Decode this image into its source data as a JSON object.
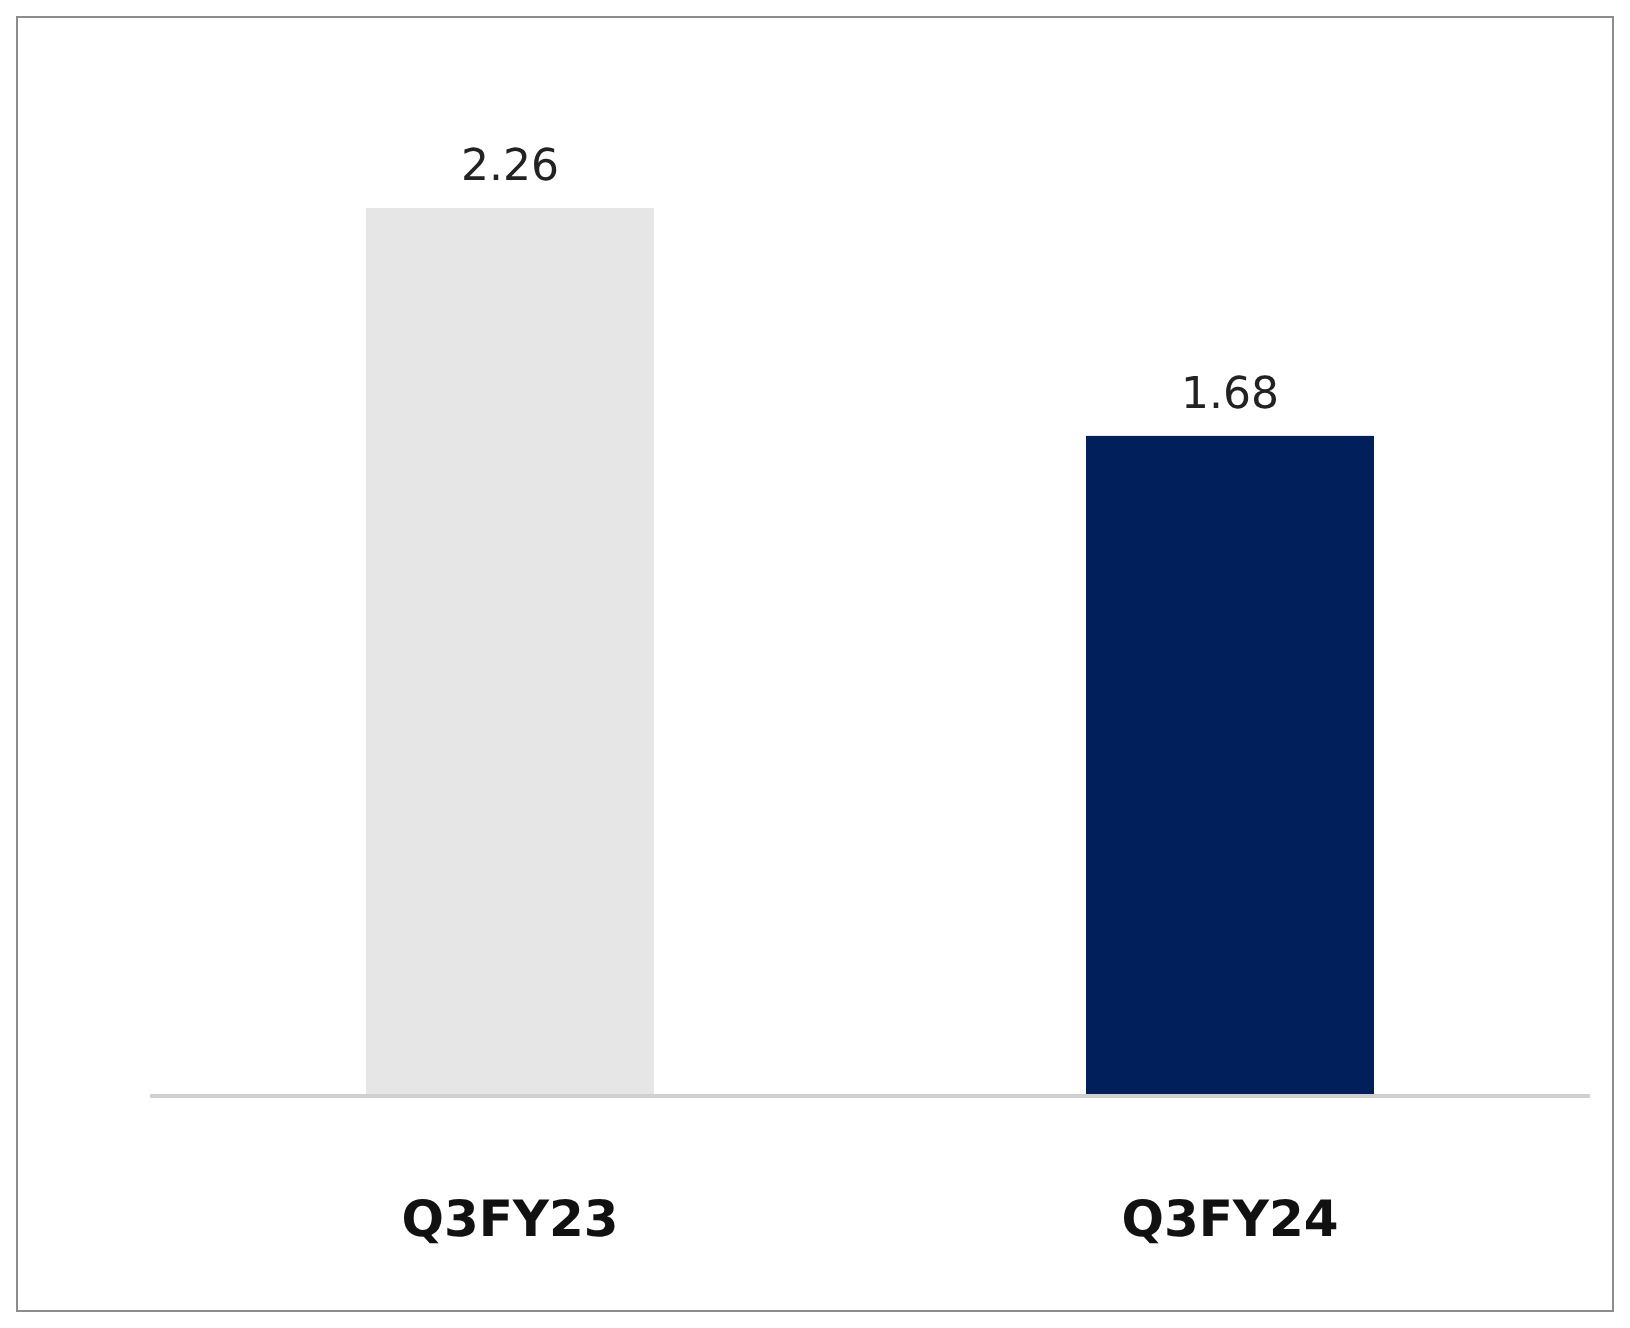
{
  "chart_data": {
    "type": "bar",
    "categories": [
      "Q3FY23",
      "Q3FY24"
    ],
    "values": [
      2.26,
      1.68
    ],
    "colors": [
      "#e6e6e6",
      "#001f5b"
    ],
    "data_labels": true
  }
}
